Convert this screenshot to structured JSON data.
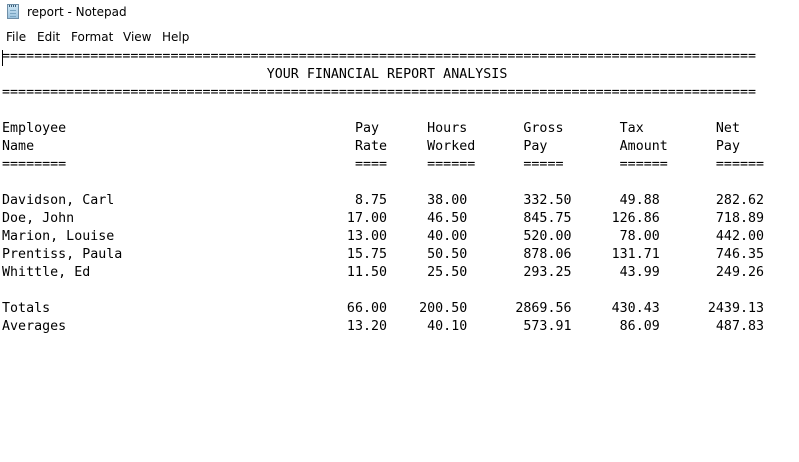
{
  "window": {
    "title": "report - Notepad",
    "icon": "notepad-icon"
  },
  "menubar": {
    "items": [
      "File",
      "Edit",
      "Format",
      "View",
      "Help"
    ]
  },
  "document": {
    "lines": [
      "==============================================================================================",
      "                                 YOUR FINANCIAL REPORT ANALYSIS",
      "==============================================================================================",
      "",
      "Employee                                    Pay      Hours       Gross       Tax         Net",
      "Name                                        Rate     Worked      Pay         Amount      Pay",
      "========                                    ====     ======      =====       ======      ======",
      "",
      "Davidson, Carl                              8.75     38.00       332.50      49.88       282.62",
      "Doe, John                                  17.00     46.50       845.75     126.86       718.89",
      "Marion, Louise                             13.00     40.00       520.00      78.00       442.00",
      "Prentiss, Paula                            15.75     50.50       878.06     131.71       746.35",
      "Whittle, Ed                                11.50     25.50       293.25      43.99       249.26",
      "",
      "Totals                                     66.00    200.50      2869.56     430.43      2439.13",
      "Averages                                   13.20     40.10       573.91      86.09       487.83"
    ]
  }
}
